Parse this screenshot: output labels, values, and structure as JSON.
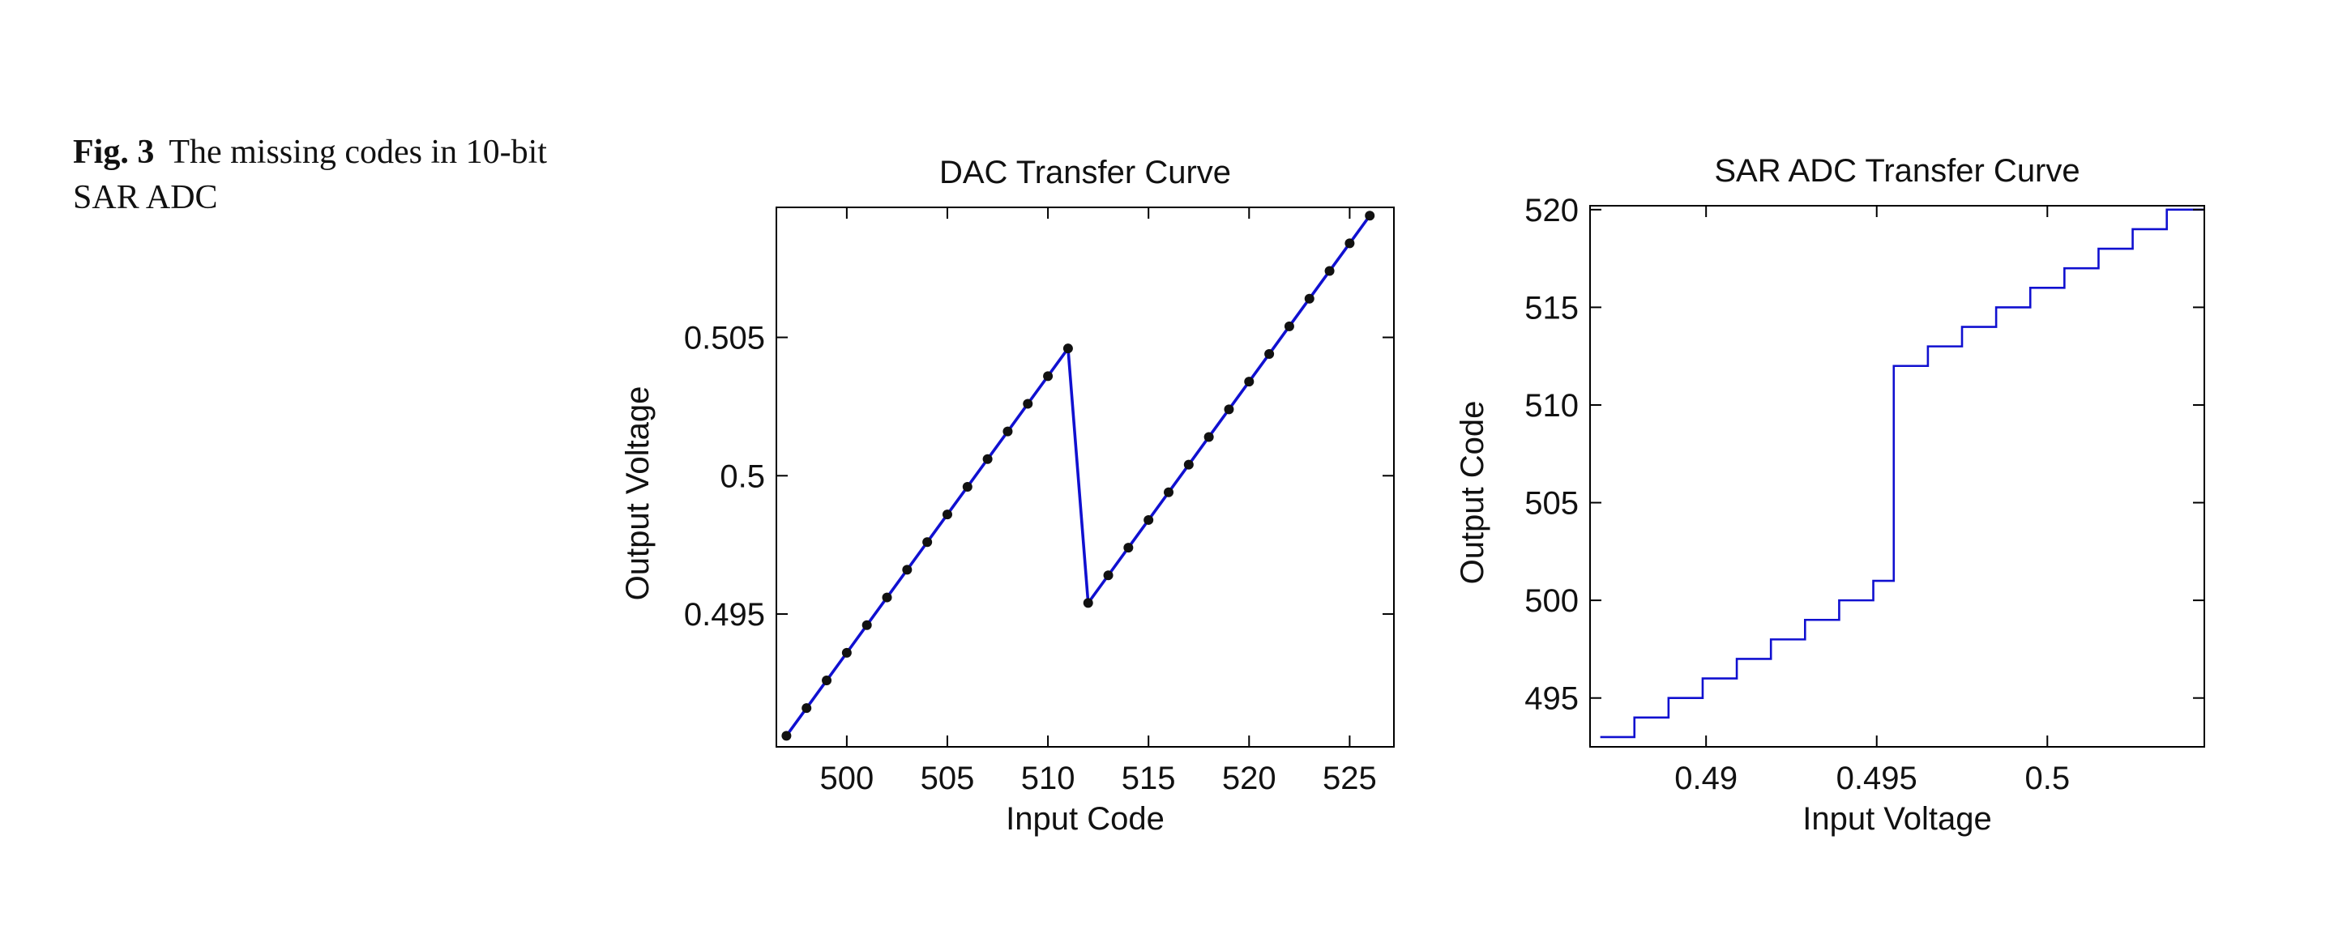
{
  "caption": {
    "label": "Fig. 3",
    "text": "The missing codes in 10-bit SAR ADC"
  },
  "colors": {
    "series": "#1010d0",
    "marker": "#111111",
    "axis": "#000000"
  },
  "chart_data": [
    {
      "type": "line",
      "title": "DAC Transfer Curve",
      "xlabel": "Input Code",
      "ylabel": "Output Voltage",
      "xlim": [
        496.5,
        527.2
      ],
      "ylim": [
        0.4902,
        0.5097
      ],
      "xticks": [
        500,
        505,
        510,
        515,
        520,
        525
      ],
      "xtick_labels": [
        "500",
        "505",
        "510",
        "515",
        "520",
        "525"
      ],
      "yticks": [
        0.495,
        0.5,
        0.505
      ],
      "ytick_labels": [
        "0.495",
        "0.5",
        "0.505"
      ],
      "markers": true,
      "grid": false,
      "series": [
        {
          "x": [
            497,
            498,
            499,
            500,
            501,
            502,
            503,
            504,
            505,
            506,
            507,
            508,
            509,
            510,
            511,
            512,
            513,
            514,
            515,
            516,
            517,
            518,
            519,
            520,
            521,
            522,
            523,
            524,
            525,
            526
          ],
          "y": [
            0.4906,
            0.4916,
            0.4926,
            0.4936,
            0.4946,
            0.4956,
            0.4966,
            0.4976,
            0.4986,
            0.4996,
            0.5006,
            0.5016,
            0.5026,
            0.5036,
            0.5046,
            0.4954,
            0.4964,
            0.4974,
            0.4984,
            0.4994,
            0.5004,
            0.5014,
            0.5024,
            0.5034,
            0.5044,
            0.5054,
            0.5064,
            0.5074,
            0.5084,
            0.5094
          ]
        }
      ]
    },
    {
      "type": "line",
      "step": true,
      "title": "SAR ADC Transfer Curve",
      "xlabel": "Input Voltage",
      "ylabel": "Output Code",
      "xlim": [
        0.4866,
        0.5046
      ],
      "ylim": [
        492.5,
        520.2
      ],
      "xticks": [
        0.49,
        0.495,
        0.5
      ],
      "xtick_labels": [
        "0.49",
        "0.495",
        "0.5"
      ],
      "yticks": [
        495,
        500,
        505,
        510,
        515,
        520
      ],
      "ytick_labels": [
        "495",
        "500",
        "505",
        "510",
        "515",
        "520"
      ],
      "grid": false,
      "series": [
        {
          "x": [
            0.4869,
            0.4879,
            0.4889,
            0.4899,
            0.4909,
            0.4919,
            0.4929,
            0.4939,
            0.4949,
            0.4955,
            0.4965,
            0.4975,
            0.4985,
            0.4995,
            0.5005,
            0.5015,
            0.5025,
            0.5035,
            0.5046
          ],
          "y": [
            493,
            494,
            495,
            496,
            497,
            498,
            499,
            500,
            501,
            512,
            513,
            514,
            515,
            516,
            517,
            518,
            519,
            520,
            520
          ]
        }
      ]
    }
  ]
}
